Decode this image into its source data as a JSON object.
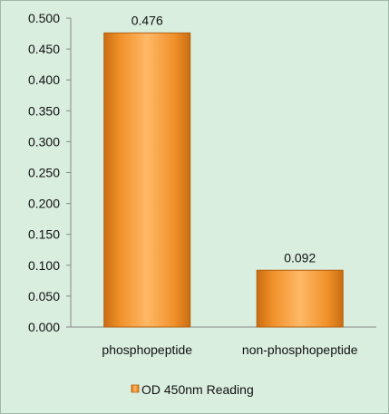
{
  "chart_data": {
    "type": "bar",
    "categories": [
      "phosphopeptide",
      "non-phosphopeptide"
    ],
    "series": [
      {
        "name": "OD 450nm Reading",
        "values": [
          0.476,
          0.092
        ]
      }
    ],
    "data_labels": [
      "0.476",
      "0.092"
    ],
    "title": "",
    "xlabel": "",
    "ylabel": "",
    "ylim": [
      0,
      0.5
    ],
    "yticks": [
      "0.000",
      "0.050",
      "0.100",
      "0.150",
      "0.200",
      "0.250",
      "0.300",
      "0.350",
      "0.400",
      "0.450",
      "0.500"
    ],
    "grid": false,
    "legend_position": "bottom",
    "colors": {
      "bar": "#f0902a",
      "bar_light": "#ffb866",
      "bar_dark": "#c96d12",
      "background": "#d9eedf"
    }
  }
}
